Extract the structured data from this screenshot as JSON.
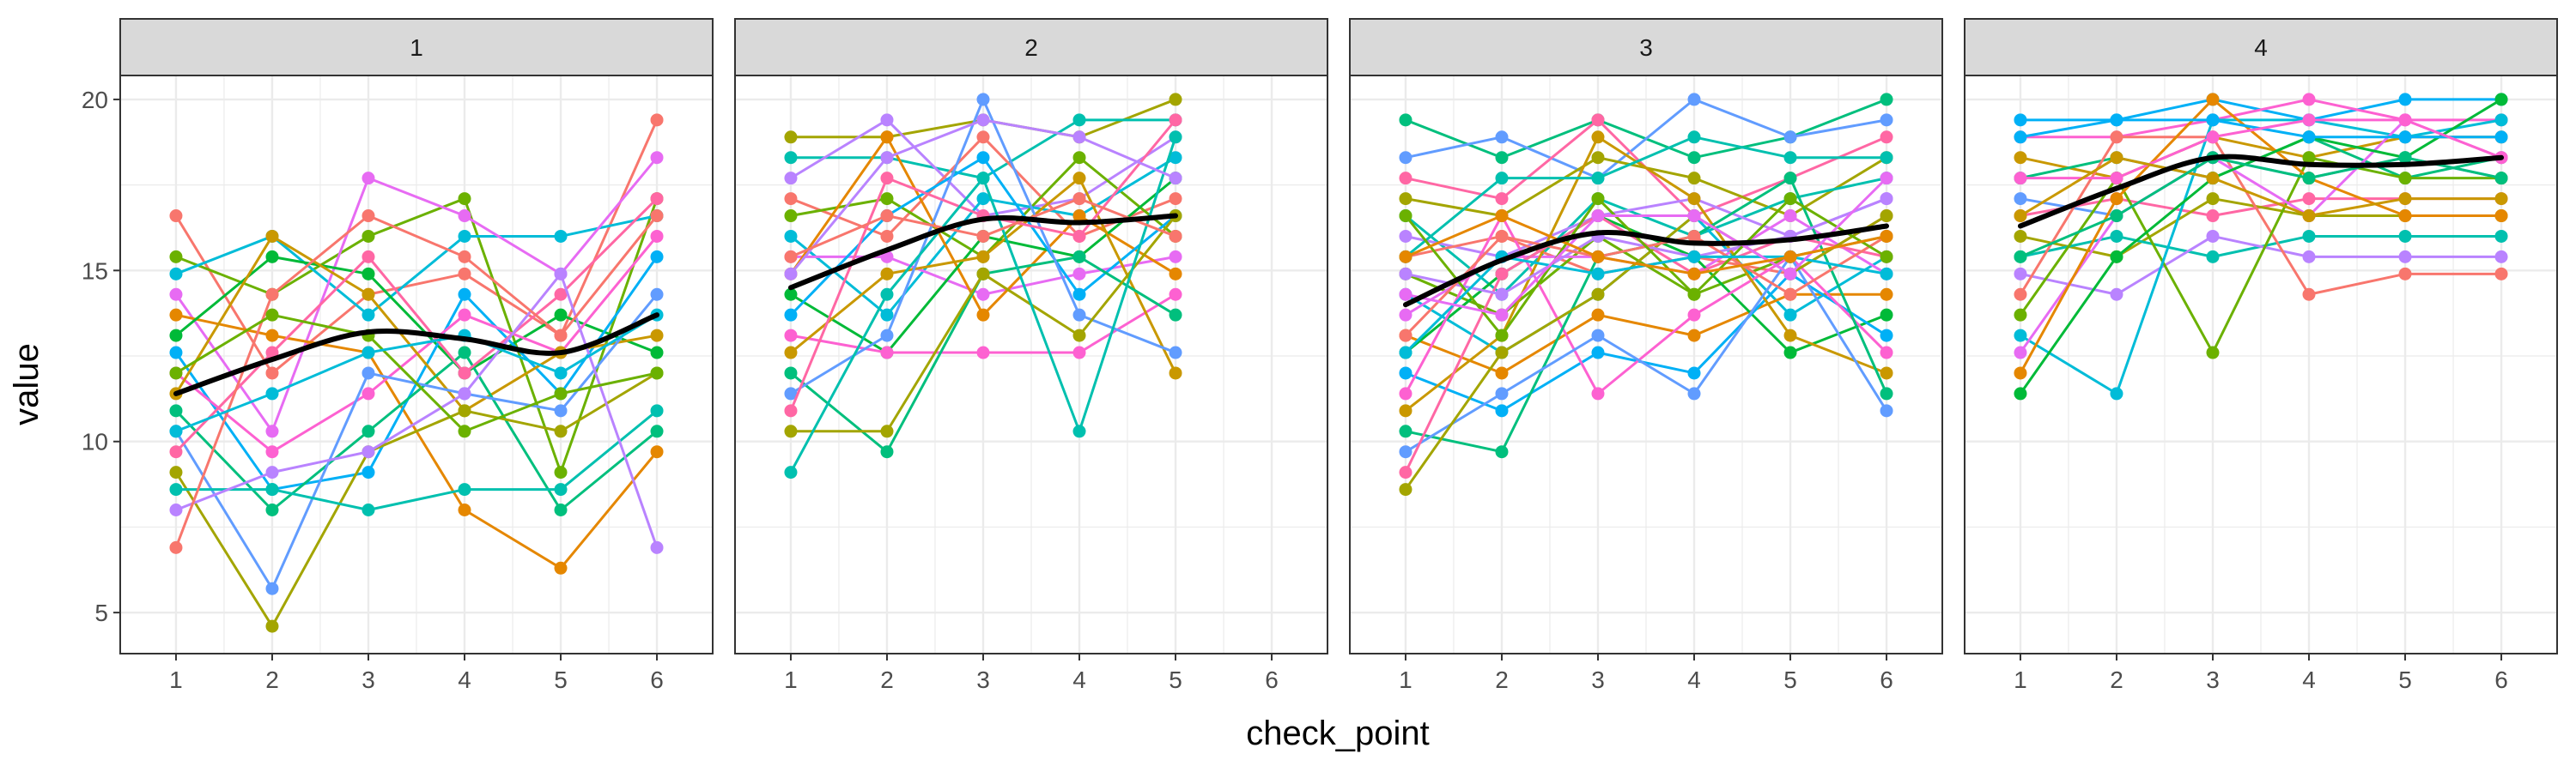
{
  "figure": {
    "xlabel": "check_point",
    "ylabel": "value"
  },
  "style": {
    "strip_fill": "#d9d9d9",
    "grid_major": "#ebebeb",
    "panel_border": "#333333",
    "smooth_color": "#000000",
    "palette": [
      "#f8766d",
      "#e58700",
      "#c99800",
      "#a3a500",
      "#6bb100",
      "#00ba38",
      "#00bf7d",
      "#00c0af",
      "#00bcd8",
      "#00b0f6",
      "#619cff",
      "#b983ff",
      "#e76bf3",
      "#fd61d1",
      "#ff67a4"
    ]
  },
  "chart_data": [
    {
      "type": "line",
      "facet": "1",
      "x_ticks": [
        1,
        2,
        3,
        4,
        5,
        6
      ],
      "y_ticks": [
        5,
        10,
        15,
        20
      ],
      "xlim": [
        0.42,
        6.58
      ],
      "ylim": [
        3.8,
        20.7
      ],
      "smooth": {
        "x": [
          1,
          2,
          3,
          4,
          5,
          6
        ],
        "y": [
          11.4,
          12.4,
          13.2,
          13.0,
          12.6,
          13.7
        ]
      },
      "series": [
        {
          "y": [
            16.6,
            12.0,
            14.3,
            14.9,
            13.1,
            19.4
          ]
        },
        {
          "y": [
            15.4,
            14.3,
            16.0,
            17.1,
            9.1,
            17.1
          ]
        },
        {
          "y": [
            14.9,
            16.0,
            13.7,
            16.0,
            16.0,
            16.6
          ]
        },
        {
          "y": [
            14.3,
            10.3,
            17.7,
            16.6,
            14.9,
            18.3
          ]
        },
        {
          "y": [
            13.7,
            13.1,
            12.6,
            8.0,
            6.3,
            9.7
          ]
        },
        {
          "y": [
            13.1,
            15.4,
            14.9,
            12.0,
            13.7,
            12.6
          ]
        },
        {
          "y": [
            12.6,
            8.6,
            9.1,
            14.3,
            11.4,
            15.4
          ]
        },
        {
          "y": [
            12.0,
            9.7,
            11.4,
            13.7,
            12.6,
            16.0
          ]
        },
        {
          "y": [
            11.4,
            16.0,
            14.3,
            10.9,
            12.6,
            13.1
          ]
        },
        {
          "y": [
            10.9,
            8.0,
            10.3,
            12.6,
            8.0,
            10.3
          ]
        },
        {
          "y": [
            10.3,
            5.7,
            12.0,
            11.4,
            10.9,
            14.3
          ]
        },
        {
          "y": [
            9.7,
            12.6,
            15.4,
            12.0,
            14.3,
            17.1
          ]
        },
        {
          "y": [
            9.1,
            4.6,
            9.7,
            10.9,
            10.3,
            12.0
          ]
        },
        {
          "y": [
            8.6,
            8.6,
            8.0,
            8.6,
            8.6,
            10.9
          ]
        },
        {
          "y": [
            8.0,
            9.1,
            9.7,
            11.4,
            14.9,
            6.9
          ]
        },
        {
          "y": [
            6.9,
            14.3,
            16.6,
            15.4,
            13.1,
            16.6
          ]
        },
        {
          "y": [
            12.0,
            13.7,
            13.1,
            10.3,
            11.4,
            12.0
          ]
        },
        {
          "y": [
            10.3,
            11.4,
            12.6,
            13.1,
            12.0,
            13.7
          ]
        }
      ]
    },
    {
      "type": "line",
      "facet": "2",
      "x_ticks": [
        1,
        2,
        3,
        4,
        5,
        6
      ],
      "y_ticks": [
        5,
        10,
        15,
        20
      ],
      "xlim": [
        0.42,
        6.58
      ],
      "ylim": [
        3.8,
        20.7
      ],
      "smooth": {
        "x": [
          1,
          2,
          3,
          4,
          5
        ],
        "y": [
          14.5,
          15.6,
          16.5,
          16.4,
          16.6
        ]
      },
      "series": [
        {
          "y": [
            18.9,
            18.9,
            19.4,
            18.9,
            20.0
          ]
        },
        {
          "y": [
            18.3,
            18.3,
            17.7,
            19.4,
            19.4
          ]
        },
        {
          "y": [
            17.7,
            19.4,
            16.6,
            17.1,
            18.9
          ]
        },
        {
          "y": [
            17.1,
            16.0,
            18.9,
            16.0,
            17.1
          ]
        },
        {
          "y": [
            16.6,
            17.1,
            15.4,
            18.3,
            16.0
          ]
        },
        {
          "y": [
            16.0,
            13.7,
            17.1,
            16.6,
            18.3
          ]
        },
        {
          "y": [
            15.4,
            15.4,
            14.3,
            14.9,
            15.4
          ]
        },
        {
          "y": [
            14.9,
            18.9,
            13.7,
            16.6,
            14.9
          ]
        },
        {
          "y": [
            14.3,
            12.6,
            16.0,
            15.4,
            17.7
          ]
        },
        {
          "y": [
            13.7,
            16.6,
            18.3,
            14.3,
            16.6
          ]
        },
        {
          "y": [
            13.1,
            12.6,
            12.6,
            12.6,
            14.3
          ]
        },
        {
          "y": [
            12.6,
            14.9,
            15.4,
            17.7,
            12.0
          ]
        },
        {
          "y": [
            12.0,
            9.7,
            14.9,
            15.4,
            13.7
          ]
        },
        {
          "y": [
            11.4,
            13.1,
            20.0,
            13.7,
            12.6
          ]
        },
        {
          "y": [
            10.9,
            17.7,
            16.6,
            16.0,
            19.4
          ]
        },
        {
          "y": [
            10.3,
            10.3,
            14.9,
            13.1,
            16.6
          ]
        },
        {
          "y": [
            9.1,
            14.3,
            17.7,
            10.3,
            18.9
          ]
        },
        {
          "y": [
            14.9,
            18.3,
            19.4,
            18.9,
            17.7
          ]
        },
        {
          "y": [
            15.4,
            16.6,
            16.0,
            17.1,
            16.0
          ]
        }
      ]
    },
    {
      "type": "line",
      "facet": "3",
      "x_ticks": [
        1,
        2,
        3,
        4,
        5,
        6
      ],
      "y_ticks": [
        5,
        10,
        15,
        20
      ],
      "xlim": [
        0.42,
        6.58
      ],
      "ylim": [
        3.8,
        20.7
      ],
      "smooth": {
        "x": [
          1,
          2,
          3,
          4,
          5,
          6
        ],
        "y": [
          14.0,
          15.3,
          16.1,
          15.8,
          15.9,
          16.3
        ]
      },
      "series": [
        {
          "y": [
            19.4,
            18.3,
            19.4,
            18.3,
            18.9,
            20.0
          ]
        },
        {
          "y": [
            18.3,
            18.9,
            17.7,
            20.0,
            18.9,
            19.4
          ]
        },
        {
          "y": [
            17.7,
            17.1,
            19.4,
            16.6,
            17.7,
            18.9
          ]
        },
        {
          "y": [
            17.1,
            16.6,
            18.3,
            17.7,
            16.6,
            18.3
          ]
        },
        {
          "y": [
            16.6,
            14.3,
            17.1,
            16.0,
            17.1,
            17.7
          ]
        },
        {
          "y": [
            16.0,
            15.4,
            16.6,
            17.1,
            16.0,
            17.1
          ]
        },
        {
          "y": [
            15.4,
            16.0,
            14.9,
            15.4,
            14.9,
            16.6
          ]
        },
        {
          "y": [
            14.9,
            13.7,
            16.0,
            14.3,
            15.4,
            16.0
          ]
        },
        {
          "y": [
            14.3,
            12.6,
            14.3,
            16.6,
            13.7,
            15.4
          ]
        },
        {
          "y": [
            13.7,
            15.4,
            15.4,
            14.9,
            16.6,
            14.9
          ]
        },
        {
          "y": [
            13.1,
            12.0,
            13.7,
            13.1,
            14.3,
            14.3
          ]
        },
        {
          "y": [
            12.6,
            14.9,
            16.6,
            15.4,
            12.6,
            13.7
          ]
        },
        {
          "y": [
            12.0,
            10.9,
            12.6,
            12.0,
            14.9,
            13.1
          ]
        },
        {
          "y": [
            11.4,
            16.6,
            11.4,
            13.7,
            15.4,
            12.6
          ]
        },
        {
          "y": [
            10.9,
            13.1,
            18.9,
            17.1,
            13.1,
            12.0
          ]
        },
        {
          "y": [
            10.3,
            9.7,
            15.4,
            16.0,
            17.7,
            11.4
          ]
        },
        {
          "y": [
            9.7,
            11.4,
            13.1,
            11.4,
            15.4,
            10.9
          ]
        },
        {
          "y": [
            9.1,
            14.9,
            16.6,
            14.9,
            16.0,
            15.4
          ]
        },
        {
          "y": [
            8.6,
            12.6,
            14.3,
            16.6,
            14.9,
            16.6
          ]
        },
        {
          "y": [
            15.4,
            17.7,
            17.7,
            18.9,
            18.3,
            18.3
          ]
        },
        {
          "y": [
            14.9,
            14.3,
            16.0,
            15.4,
            16.0,
            17.1
          ]
        },
        {
          "y": [
            13.1,
            16.0,
            15.4,
            16.0,
            14.3,
            16.0
          ]
        },
        {
          "y": [
            16.6,
            13.1,
            17.1,
            14.3,
            17.1,
            15.4
          ]
        },
        {
          "y": [
            12.6,
            15.4,
            14.9,
            15.4,
            15.4,
            14.9
          ]
        },
        {
          "y": [
            14.3,
            13.7,
            16.6,
            16.6,
            14.9,
            17.7
          ]
        },
        {
          "y": [
            15.4,
            16.6,
            15.4,
            14.9,
            15.4,
            16.0
          ]
        }
      ]
    },
    {
      "type": "line",
      "facet": "4",
      "x_ticks": [
        1,
        2,
        3,
        4,
        5,
        6
      ],
      "y_ticks": [
        5,
        10,
        15,
        20
      ],
      "xlim": [
        0.42,
        6.58
      ],
      "ylim": [
        3.8,
        20.7
      ],
      "smooth": {
        "x": [
          1,
          2,
          3,
          4,
          5,
          6
        ],
        "y": [
          16.3,
          17.4,
          18.3,
          18.1,
          18.1,
          18.3
        ]
      },
      "series": [
        {
          "y": [
            19.4,
            19.4,
            20.0,
            19.4,
            20.0,
            20.0
          ]
        },
        {
          "y": [
            18.9,
            18.9,
            19.4,
            20.0,
            19.4,
            19.4
          ]
        },
        {
          "y": [
            18.3,
            17.7,
            18.9,
            18.3,
            18.9,
            18.9
          ]
        },
        {
          "y": [
            17.7,
            18.3,
            17.7,
            18.9,
            17.7,
            18.3
          ]
        },
        {
          "y": [
            17.1,
            16.6,
            18.3,
            17.7,
            18.3,
            17.7
          ]
        },
        {
          "y": [
            16.6,
            17.1,
            16.6,
            17.1,
            17.1,
            17.1
          ]
        },
        {
          "y": [
            16.0,
            15.4,
            17.1,
            16.6,
            16.6,
            16.6
          ]
        },
        {
          "y": [
            15.4,
            16.0,
            15.4,
            16.0,
            16.0,
            16.0
          ]
        },
        {
          "y": [
            14.9,
            14.3,
            16.0,
            15.4,
            15.4,
            15.4
          ]
        },
        {
          "y": [
            14.3,
            18.9,
            18.9,
            14.3,
            14.9,
            14.9
          ]
        },
        {
          "y": [
            13.7,
            17.7,
            12.6,
            18.3,
            17.7,
            17.7
          ]
        },
        {
          "y": [
            13.1,
            11.4,
            19.4,
            19.4,
            18.9,
            19.4
          ]
        },
        {
          "y": [
            12.6,
            16.6,
            18.3,
            16.6,
            19.4,
            18.3
          ]
        },
        {
          "y": [
            12.0,
            17.1,
            20.0,
            17.7,
            16.6,
            16.6
          ]
        },
        {
          "y": [
            11.4,
            15.4,
            17.7,
            18.9,
            18.3,
            20.0
          ]
        },
        {
          "y": [
            18.9,
            19.4,
            19.4,
            18.9,
            18.9,
            18.9
          ]
        },
        {
          "y": [
            17.7,
            17.7,
            18.9,
            19.4,
            19.4,
            18.3
          ]
        },
        {
          "y": [
            16.6,
            18.3,
            17.7,
            16.6,
            17.1,
            17.1
          ]
        },
        {
          "y": [
            15.4,
            16.6,
            18.3,
            17.7,
            18.3,
            17.7
          ]
        }
      ]
    }
  ]
}
